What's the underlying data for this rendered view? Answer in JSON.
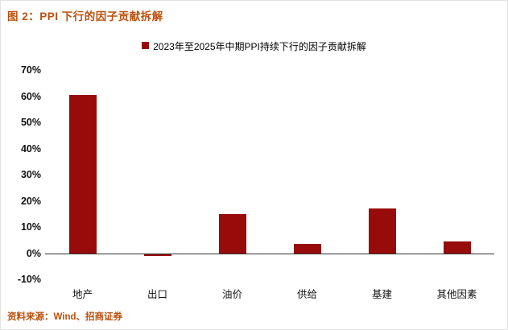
{
  "page": {
    "figure_title": "图 2：PPI 下行的因子贡献拆解",
    "source": "资料来源：Wind、招商证券"
  },
  "colors": {
    "title_text": "#bc4f0c",
    "bar": "#970b0b",
    "axis_text": "#111111"
  },
  "chart_data": {
    "type": "bar",
    "title": "2023年至2025年中期PPI持续下行的因子贡献拆解",
    "categories": [
      "地产",
      "出口",
      "油价",
      "供给",
      "基建",
      "其他因素"
    ],
    "values": [
      60.5,
      -1,
      15,
      3.5,
      17,
      4.5
    ],
    "unit": "%",
    "ylim": [
      -10,
      70
    ],
    "yticks": [
      70,
      60,
      50,
      40,
      30,
      20,
      10,
      0,
      -10
    ],
    "ytick_suffix": "%",
    "grid": false,
    "legend_position": "top-center",
    "bar_color": "#970b0b"
  }
}
